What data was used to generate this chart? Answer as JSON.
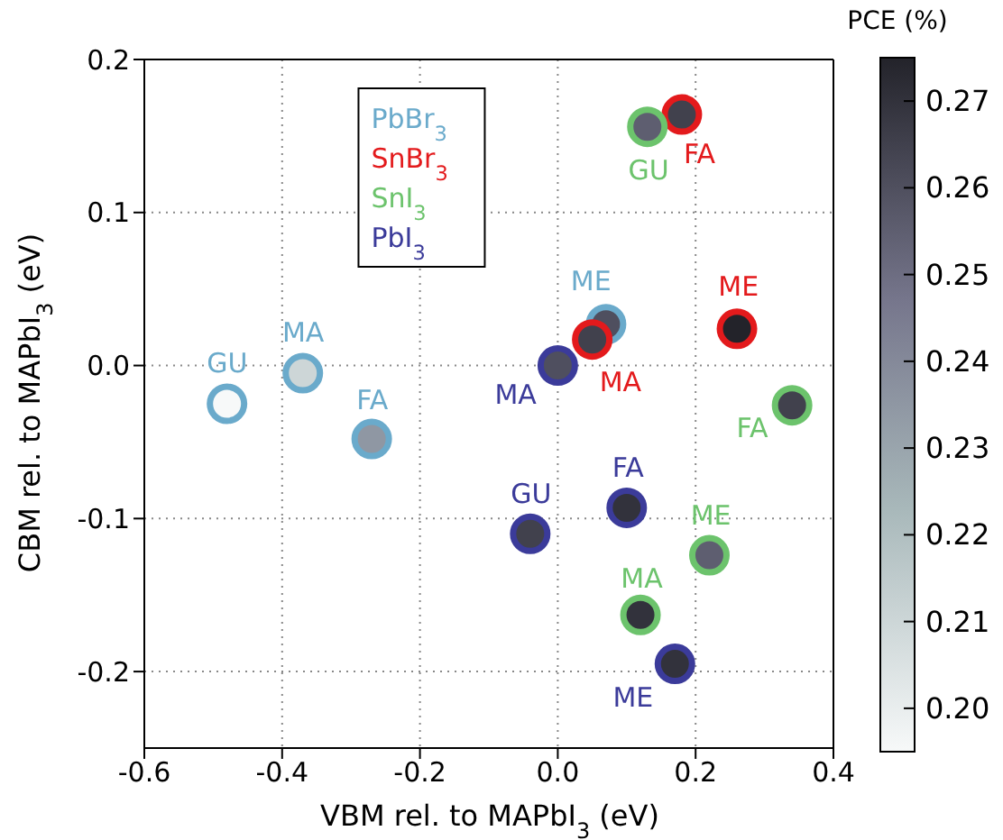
{
  "chart_data": {
    "type": "scatter",
    "xlabel": "VBM rel. to MAPbI$_{3}$ (eV)",
    "ylabel": "CBM rel. to MAPbI$_{3}$ (eV)",
    "clabel": "PCE (%)",
    "xlim": [
      -0.6,
      0.4
    ],
    "xticks": [
      -0.6,
      -0.4,
      -0.2,
      {
        "value": 0,
        "label": "0.0"
      },
      0.2,
      0.4
    ],
    "ylim": [
      -0.25,
      0.2
    ],
    "yticks": [
      -0.2,
      -0.1,
      {
        "value": 0,
        "label": "0.0"
      },
      0.1,
      0.2
    ],
    "clim": [
      0.195,
      0.275
    ],
    "cticks": [
      {
        "value": 0.2,
        "label": "0.20"
      },
      0.21,
      0.22,
      0.23,
      0.24,
      0.25,
      0.26,
      0.27
    ],
    "grid": true,
    "legend": "top",
    "marker": "circle",
    "series": [
      {
        "name": "PbBr$_{3}$",
        "color": "#6aaacb",
        "x": [
          -0.48,
          -0.37,
          -0.27,
          0.07
        ],
        "values": [
          -0.025,
          -0.005,
          -0.048,
          0.027
        ],
        "cvalues": [
          0.195,
          0.21,
          0.235,
          0.26
        ]
      },
      {
        "name": "SnBr$_{3}$",
        "color": "#e31a1c",
        "x": [
          0.18,
          0.05,
          0.26
        ],
        "values": [
          0.164,
          0.017,
          0.024
        ],
        "cvalues": [
          0.265,
          0.265,
          0.275
        ]
      },
      {
        "name": "SnI$_{3}$",
        "color": "#6cc36c",
        "x": [
          0.13,
          0.34,
          0.22,
          0.12
        ],
        "values": [
          0.156,
          -0.026,
          -0.124,
          -0.163
        ],
        "cvalues": [
          0.255,
          0.265,
          0.255,
          0.27
        ]
      },
      {
        "name": "PbI$_{3}$",
        "color": "#3b3b9a",
        "x": [
          0.0,
          -0.04,
          0.1,
          0.17
        ],
        "values": [
          0.0,
          -0.11,
          -0.093,
          -0.195
        ],
        "cvalues": [
          0.26,
          0.265,
          0.27,
          0.27
        ]
      }
    ],
    "annotations": [
      {
        "text": "GU",
        "x": -0.48,
        "y": -0.025
      },
      {
        "text": "MA",
        "x": -0.37,
        "y": -0.005
      },
      {
        "text": "FA",
        "x": -0.27,
        "y": -0.048
      },
      {
        "text": "ME",
        "x": 0.07,
        "y": 0.027
      },
      {
        "text": "FA",
        "x": 0.18,
        "y": 0.164
      },
      {
        "text": "MA",
        "x": 0.05,
        "y": 0.017
      },
      {
        "text": "ME",
        "x": 0.26,
        "y": 0.024
      },
      {
        "text": "GU",
        "x": 0.13,
        "y": 0.156
      },
      {
        "text": "FA",
        "x": 0.34,
        "y": -0.026
      },
      {
        "text": "ME",
        "x": 0.22,
        "y": -0.124
      },
      {
        "text": "MA",
        "x": 0.12,
        "y": -0.163
      },
      {
        "text": "MA",
        "x": 0.0,
        "y": 0.0
      },
      {
        "text": "GU",
        "x": -0.04,
        "y": -0.11
      },
      {
        "text": "FA",
        "x": 0.1,
        "y": -0.093
      },
      {
        "text": "ME",
        "x": 0.17,
        "y": -0.195
      }
    ]
  }
}
